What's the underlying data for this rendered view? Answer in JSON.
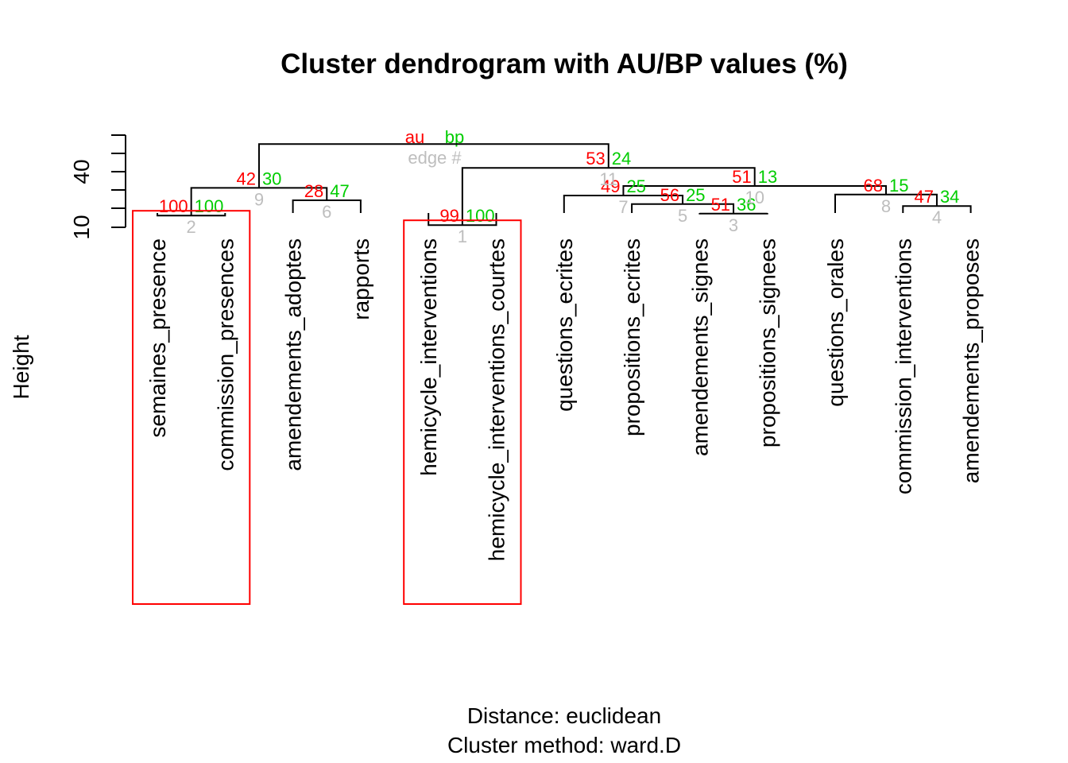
{
  "chart_data": {
    "type": "dendrogram",
    "title": "Cluster dendrogram with AU/BP values (%)",
    "ylabel": "Height",
    "ytick_labels": [
      "10",
      "40"
    ],
    "sub": [
      "Distance:  euclidean",
      "Cluster method: ward.D"
    ],
    "legend": {
      "au": "au",
      "bp": "bp",
      "edge": "edge #"
    },
    "colors": {
      "au": "#ff0000",
      "bp": "#00cd00",
      "edge": "#bebebe",
      "box": "#ff0000"
    },
    "leaves": [
      "semaines_presence",
      "commission_presences",
      "amendements_adoptes",
      "rapports",
      "hemicycle_interventions",
      "hemicycle_interventions_courtes",
      "questions_ecrites",
      "propositions_ecrites",
      "amendements_signes",
      "propositions_signees",
      "questions_orales",
      "commission_interventions",
      "amendements_proposes"
    ],
    "merges": [
      {
        "edge": "1",
        "au": "99",
        "bp": "100",
        "left": 4,
        "right": 5,
        "height": 14
      },
      {
        "edge": "2",
        "au": "100",
        "bp": "100",
        "left": 0,
        "right": 1,
        "height": 24
      },
      {
        "edge": "3",
        "au": "51",
        "bp": "36",
        "left": 8,
        "right": 9,
        "height": 26
      },
      {
        "edge": "4",
        "au": "47",
        "bp": "34",
        "left": 11,
        "right": 12,
        "height": 34
      },
      {
        "edge": "5",
        "au": "56",
        "bp": "25",
        "left": 7,
        "right": "m3",
        "height": 36
      },
      {
        "edge": "6",
        "au": "28",
        "bp": "47",
        "left": 2,
        "right": 3,
        "height": 40
      },
      {
        "edge": "7",
        "au": "49",
        "bp": "25",
        "left": 6,
        "right": "m5",
        "height": 45
      },
      {
        "edge": "8",
        "au": "68",
        "bp": "15",
        "left": 10,
        "right": "m4",
        "height": 46
      },
      {
        "edge": "9",
        "au": "42",
        "bp": "30",
        "left": "m2",
        "right": "m6",
        "height": 53
      },
      {
        "edge": "10",
        "au": "51",
        "bp": "13",
        "left": "m7",
        "right": "m8",
        "height": 55
      },
      {
        "edge": "11",
        "au": "53",
        "bp": "24",
        "left": "m1",
        "right": "m10",
        "height": 74
      },
      {
        "edge": "",
        "au": "",
        "bp": "",
        "left": "m9",
        "right": "m11",
        "height": 99
      }
    ],
    "highlight_clusters": [
      {
        "from": 0,
        "to": 1
      },
      {
        "from": 4,
        "to": 5
      }
    ]
  }
}
